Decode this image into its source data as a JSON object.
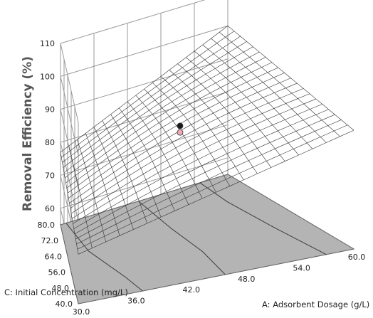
{
  "chart_data": {
    "type": "surface3d",
    "zlabel": "Removal Efficiency (%)",
    "xlabel": "A: Adsorbent Dosage (g/L)",
    "ylabel": "C: Initial Concentration (mg/L)",
    "x_ticks": [
      "30.0",
      "36.0",
      "42.0",
      "48.0",
      "54.0",
      "60.0"
    ],
    "y_ticks": [
      "40.0",
      "48.0",
      "56.0",
      "64.0",
      "72.0",
      "80.0"
    ],
    "z_ticks": [
      "60",
      "70",
      "80",
      "90",
      "100",
      "110"
    ],
    "xlim": [
      30,
      60
    ],
    "ylim": [
      40,
      80
    ],
    "zlim": [
      55,
      110
    ],
    "surface_corners": {
      "x30_y40": 70,
      "x60_y40": 91,
      "x30_y80": 77,
      "x60_y80": 100
    },
    "design_points": [
      {
        "x": 45,
        "y": 60,
        "z": 89,
        "above_surface": true
      },
      {
        "x": 45,
        "y": 60,
        "z": 87,
        "above_surface": false
      }
    ],
    "colors": {
      "surface_line": "#333333",
      "floor": "#b4b4b4",
      "floor_contour": "#3c3c3c",
      "grid": "#9a9a9a",
      "point_above": "#1a1a1a",
      "point_below": "#f0aab4"
    }
  }
}
